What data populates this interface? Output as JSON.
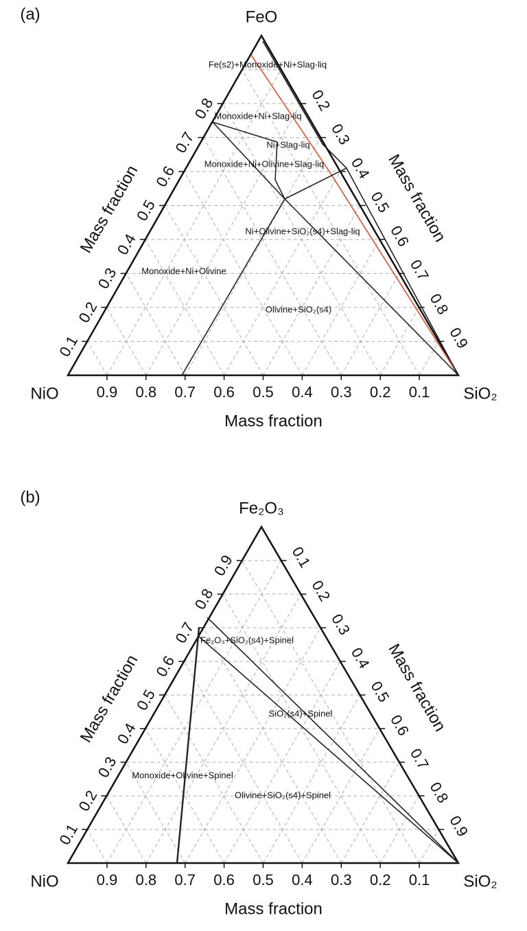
{
  "panels": [
    {
      "label": "(a)",
      "vertices": {
        "top": "FeO",
        "left": "NiO",
        "right": "SiO₂"
      },
      "axis_labels": {
        "left": "Mass fraction",
        "right": "Mass fraction",
        "bottom": "Mass fraction"
      },
      "left_ticks": [
        0.1,
        0.2,
        0.3,
        0.4,
        0.5,
        0.6,
        0.7,
        0.8
      ],
      "right_ticks": [
        0.2,
        0.3,
        0.4,
        0.5,
        0.6,
        0.7,
        0.8,
        0.9
      ],
      "bottom_ticks": [
        0.9,
        0.8,
        0.7,
        0.6,
        0.5,
        0.4,
        0.3,
        0.2,
        0.1
      ],
      "regions": [
        "Fe(s2)+Monoxide+Ni+Slag-liq",
        "Monoxide+Ni+Slag-liq",
        "Ni+Slag-liq",
        "Monoxide+Ni+Olivine+Slag-liq",
        "Ni+Olivine+SiO₂(s4)+Slag-liq",
        "Monoxide+Ni+Olivine",
        "Olivine+SiO₂(s4)"
      ]
    },
    {
      "label": "(b)",
      "vertices": {
        "top": "Fe₂O₃",
        "left": "NiO",
        "right": "SiO₂"
      },
      "axis_labels": {
        "left": "Mass fraction",
        "right": "Mass fraction",
        "bottom": "Mass fraction"
      },
      "left_ticks": [
        0.1,
        0.2,
        0.3,
        0.4,
        0.5,
        0.6,
        0.7,
        0.8,
        0.9
      ],
      "right_ticks": [
        0.1,
        0.2,
        0.3,
        0.4,
        0.5,
        0.6,
        0.7,
        0.8,
        0.9
      ],
      "bottom_ticks": [
        0.9,
        0.8,
        0.7,
        0.6,
        0.5,
        0.4,
        0.3,
        0.2,
        0.1
      ],
      "regions": [
        "Fe₂O₃+SiO₂(s4)+Spinel",
        "SiO₂(s4)+Spinel",
        "Monoxide+Olivine+Spinel",
        "Olivine+SiO₂(s4)+Spinel"
      ]
    }
  ]
}
